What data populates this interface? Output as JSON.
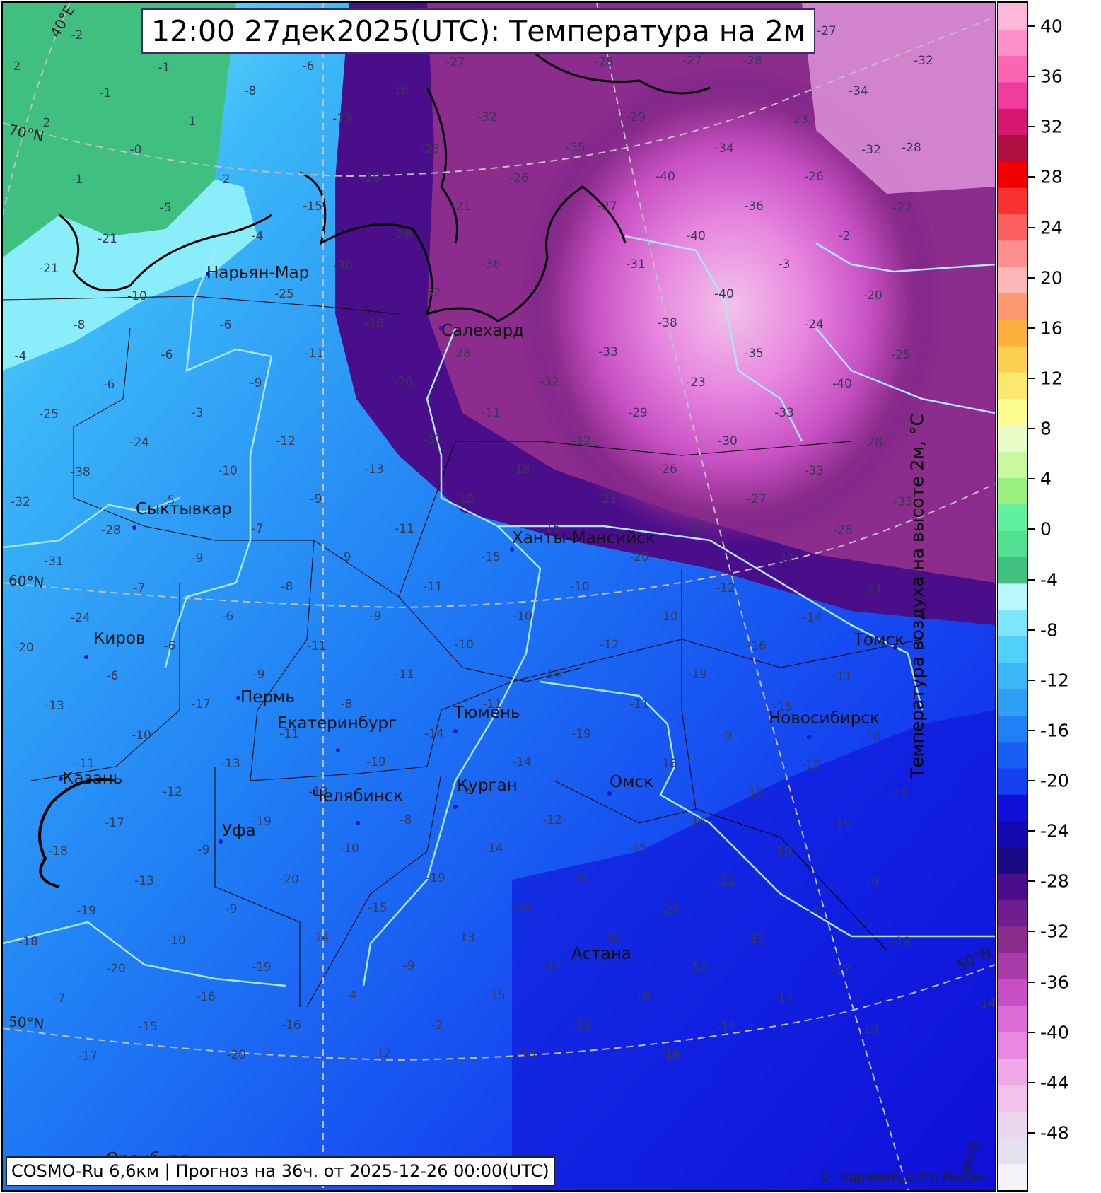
{
  "title": "12:00 27дек2025(UTC): Температура на 2м",
  "footer": "COSMO-Ru 6,6км | Прогноз на  36ч. от 2025-12-26 00:00(UTC)",
  "copyright": "©Гидрометцентр России",
  "colorbar": {
    "title": "Температура воздуха на высоте 2м, °C",
    "ticks": [
      "40",
      "36",
      "32",
      "28",
      "24",
      "20",
      "16",
      "12",
      "8",
      "4",
      "0",
      "-4",
      "-8",
      "-12",
      "-16",
      "-20",
      "-24",
      "-28",
      "-32",
      "-36",
      "-40",
      "-44",
      "-48"
    ],
    "colors": [
      "#f2f2f8",
      "#e4e0f0",
      "#ead6ee",
      "#f2c2ea",
      "#f0a8e8",
      "#e888e0",
      "#dc6cd6",
      "#c850c4",
      "#a83ca8",
      "#8c2c8c",
      "#6e1e8e",
      "#4a0e8a",
      "#1a0a86",
      "#1408b0",
      "#1010d8",
      "#1440f0",
      "#1860f5",
      "#2080f5",
      "#30a0f5",
      "#3cb8f8",
      "#50d0fa",
      "#7ee6fc",
      "#b8f8fc",
      "#40c080",
      "#50e090",
      "#60f0a0",
      "#9cf080",
      "#c8f8a0",
      "#e8fcc8",
      "#fcfc90",
      "#fce870",
      "#fcd050",
      "#fcb040",
      "#fc9870",
      "#fcb8b8",
      "#fc9090",
      "#fc6060",
      "#f83030",
      "#f00000",
      "#b01040",
      "#d81870",
      "#f03c9c",
      "#fc64b4",
      "#fc90c8",
      "#fcb8d8"
    ]
  },
  "latlon_labels": [
    "40°E",
    "70°N",
    "60°N",
    "50°N",
    "50°N",
    "80°E"
  ],
  "cities": [
    {
      "name": "Нарьян-Мар"
    },
    {
      "name": "Салехард"
    },
    {
      "name": "Сыктывкар"
    },
    {
      "name": "Ханты-Мансийск"
    },
    {
      "name": "Киров"
    },
    {
      "name": "Пермь"
    },
    {
      "name": "Екатеринбург"
    },
    {
      "name": "Тюмень"
    },
    {
      "name": "Новосибирск"
    },
    {
      "name": "Томск"
    },
    {
      "name": "Казань"
    },
    {
      "name": "Челябинск"
    },
    {
      "name": "Курган"
    },
    {
      "name": "Омск"
    },
    {
      "name": "Уфа"
    },
    {
      "name": "Оренбург"
    },
    {
      "name": "Астана"
    }
  ],
  "values": [
    "-2",
    "2",
    "-1",
    "-6",
    "-27",
    "-28",
    "-27",
    "-28",
    "-27",
    "-32",
    "-1",
    "-8",
    "-16",
    "-34",
    "2",
    "1",
    "-13",
    "-32",
    "-29",
    "-23",
    "-35",
    "-32",
    "-34",
    "-0",
    "-23",
    "-28",
    "-1",
    "-2",
    "-18",
    "-26",
    "-40",
    "-26",
    "-22",
    "-27",
    "-36",
    "-5",
    "-15",
    "-21",
    "-21",
    "-4",
    "-28",
    "-40",
    "-2",
    "-21",
    "-30",
    "-36",
    "-31",
    "-3",
    "-10",
    "-25",
    "-32",
    "-40",
    "-20",
    "-8",
    "-6",
    "-16",
    "-38",
    "-24",
    "-6",
    "-11",
    "-28",
    "-33",
    "-35",
    "-25",
    "-4",
    "-26",
    "-32",
    "-6",
    "-9",
    "-23",
    "-40",
    "-25",
    "-3",
    "-11",
    "-29",
    "-33",
    "-31",
    "-24",
    "-12",
    "-12",
    "-30",
    "-28",
    "-38",
    "-10",
    "-13",
    "-18",
    "-26",
    "-33",
    "-32",
    "-5",
    "-9",
    "-10",
    "21",
    "-27",
    "-33",
    "-28",
    "-7",
    "-11",
    "-15",
    "-23",
    "-28",
    "-31",
    "-9",
    "-9",
    "-15",
    "-20",
    "-27",
    "-7",
    "-8",
    "-11",
    "-10",
    "-12",
    "-21",
    "-24",
    "-6",
    "-9",
    "-10",
    "-10",
    "-14",
    "-20",
    "-6",
    "-11",
    "-10",
    "-12",
    "-16",
    "-6",
    "-9",
    "-11",
    "-14",
    "-19",
    "-11",
    "-13",
    "-17",
    "-8",
    "-11",
    "-11",
    "-15",
    "-10",
    "-11",
    "-14",
    "-19",
    "-9",
    "-10",
    "-11",
    "-13",
    "-19",
    "-14",
    "-18",
    "-10",
    "-12",
    "-13",
    "-8",
    "-10",
    "-12",
    "-17",
    "-19",
    "-8",
    "-12",
    "-14",
    "-15",
    "-18",
    "-9",
    "-10",
    "-14",
    "-15",
    "-19",
    "-13",
    "-20",
    "-19",
    "-6",
    "-12",
    "-19",
    "-19",
    "-9",
    "-15",
    "-16",
    "-20",
    "-4",
    "-10",
    "-14",
    "-13",
    "-20",
    "-15",
    "-19",
    "-18",
    "-19",
    "-9",
    "-14",
    "-15",
    "-17",
    "-20",
    "-16",
    "-4",
    "-15",
    "-18",
    "-17",
    "-7",
    "-14",
    "-15",
    "-16",
    "-2",
    "-12",
    "-14",
    "-18",
    "-17",
    "-20",
    "-12",
    "-18",
    "-18"
  ]
}
